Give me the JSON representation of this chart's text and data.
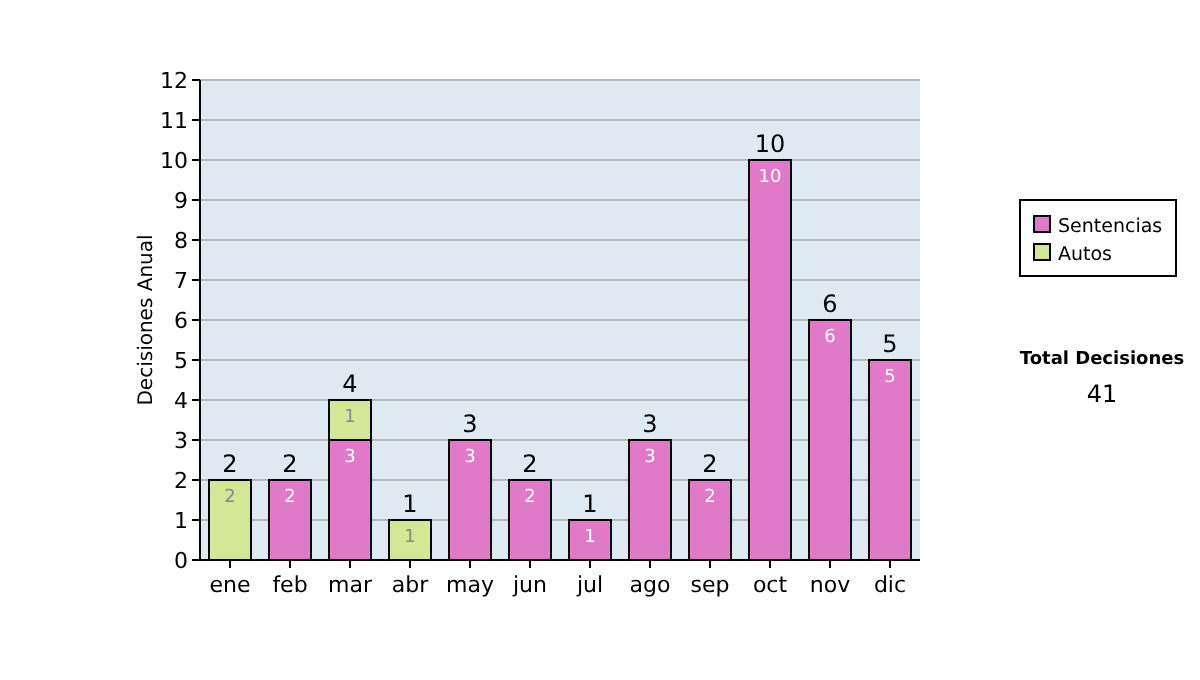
{
  "chart_data": {
    "type": "bar",
    "stacked": true,
    "ylabel": "Decisiones Anual",
    "categories": [
      "ene",
      "feb",
      "mar",
      "abr",
      "may",
      "jun",
      "jul",
      "ago",
      "sep",
      "oct",
      "nov",
      "dic"
    ],
    "series": [
      {
        "name": "Sentencias",
        "color": "#e07ac8",
        "values": [
          null,
          2,
          3,
          null,
          3,
          2,
          1,
          3,
          2,
          10,
          6,
          5
        ]
      },
      {
        "name": "Autos",
        "color": "#d2e896",
        "values": [
          2,
          null,
          1,
          1,
          null,
          null,
          null,
          null,
          null,
          null,
          null,
          null
        ]
      }
    ],
    "ylim": [
      0,
      12
    ],
    "yticks": [
      0,
      1,
      2,
      3,
      4,
      5,
      6,
      7,
      8,
      9,
      10,
      11,
      12
    ],
    "grid": "y",
    "legend": "right",
    "data_labels": true,
    "totals": [
      "2",
      "2",
      "4",
      "1",
      "3",
      "2",
      "1",
      "3",
      "2",
      "10",
      "6",
      "5"
    ],
    "annotations": [
      "Total Decisiones",
      "41"
    ]
  }
}
